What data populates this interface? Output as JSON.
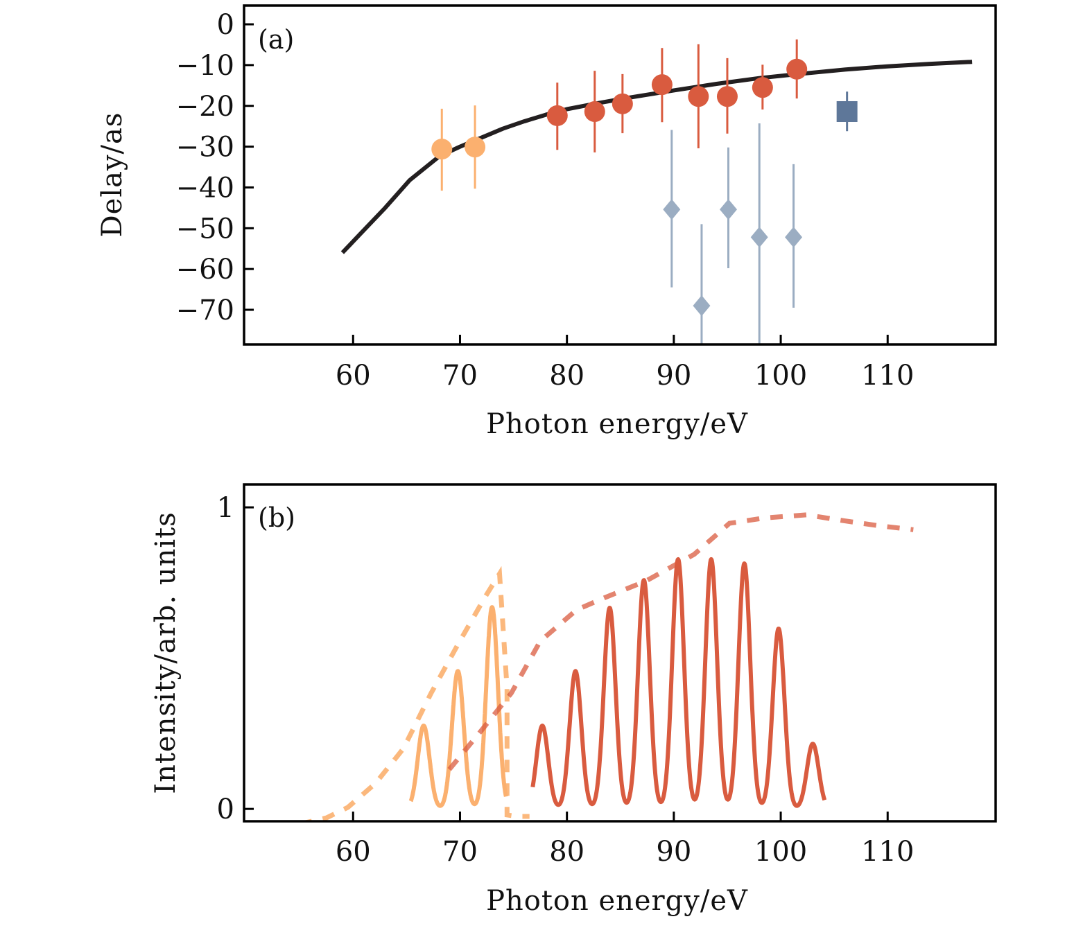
{
  "chart_data": [
    {
      "panel": "(a)",
      "type": "scatter",
      "xlabel": "Photon energy/eV",
      "ylabel": "Delay/as",
      "xlim": [
        49.8,
        120.1
      ],
      "ylim": [
        -78.5,
        4.6
      ],
      "xticks": [
        60,
        70,
        80,
        90,
        100,
        110
      ],
      "yticks": [
        0,
        -10,
        -20,
        -30,
        -40,
        -50,
        -60,
        -70
      ],
      "ytick_labels": [
        "0",
        "−10",
        "−20",
        "−30",
        "−40",
        "−50",
        "−60",
        "−70"
      ],
      "grid": false,
      "series": [
        {
          "name": "theory-curve",
          "kind": "line",
          "color": "#231f20",
          "x": [
            59.0,
            61.0,
            63.0,
            65.3,
            68.1,
            70.0,
            72.0,
            74.0,
            76.0,
            78.0,
            80.0,
            83.0,
            86.0,
            90.0,
            94.0,
            98.0,
            102.0,
            106.0,
            110.0,
            114.0,
            117.9
          ],
          "y": [
            -56.0,
            -50.5,
            -45.0,
            -38.2,
            -32.3,
            -30.0,
            -27.8,
            -25.6,
            -23.8,
            -22.2,
            -20.8,
            -19.3,
            -17.9,
            -16.2,
            -14.6,
            -13.2,
            -12.1,
            -11.1,
            -10.3,
            -9.7,
            -9.2
          ]
        },
        {
          "name": "orange-circles",
          "kind": "circle",
          "color": "#fbb06f",
          "x": [
            68.3,
            71.4
          ],
          "y": [
            -30.6,
            -30.1
          ],
          "err_low": [
            -40.8,
            -40.3
          ],
          "err_high": [
            -20.7,
            -19.9
          ]
        },
        {
          "name": "red-circles",
          "kind": "circle",
          "color": "#d95b3f",
          "x": [
            79.1,
            82.6,
            85.2,
            88.9,
            92.3,
            95.0,
            98.3,
            101.5
          ],
          "y": [
            -22.4,
            -21.4,
            -19.5,
            -14.8,
            -17.7,
            -17.7,
            -15.5,
            -11.0
          ],
          "err_low": [
            -30.8,
            -31.4,
            -26.7,
            -24.0,
            -30.4,
            -26.8,
            -20.9,
            -18.2
          ],
          "err_high": [
            -14.3,
            -11.4,
            -12.2,
            -5.8,
            -4.9,
            -8.3,
            -9.9,
            -3.7
          ]
        },
        {
          "name": "grey-diamonds",
          "kind": "diamond",
          "color": "#9badc2",
          "x": [
            89.8,
            92.6,
            95.1,
            98.0,
            101.2
          ],
          "y": [
            -45.4,
            -69.0,
            -45.4,
            -52.2,
            -52.2
          ],
          "err_low": [
            -64.5,
            -78.5,
            -59.8,
            -78.5,
            -69.5
          ],
          "err_high": [
            -25.9,
            -49.0,
            -30.2,
            -24.3,
            -34.3
          ]
        },
        {
          "name": "blue-square",
          "kind": "square",
          "color": "#5e7799",
          "x": [
            106.2
          ],
          "y": [
            -21.4
          ],
          "err_low": [
            -26.2
          ],
          "err_high": [
            -16.5
          ]
        }
      ]
    },
    {
      "panel": "(b)",
      "type": "line",
      "xlabel": "Photon energy/eV",
      "ylabel": "Intensity/arb. units",
      "xlim": [
        49.8,
        120.1
      ],
      "ylim": [
        -0.041,
        1.076
      ],
      "xticks": [
        60,
        70,
        80,
        90,
        100,
        110
      ],
      "yticks": [
        0,
        1
      ],
      "ytick_labels": [
        "0",
        "1"
      ],
      "grid": false,
      "series": [
        {
          "name": "orange-harmonics",
          "kind": "peaks",
          "color": "#fbb06f",
          "x_range": [
            65.4,
            74.3
          ],
          "peak_x": [
            66.6,
            69.8,
            73.0
          ],
          "peak_y": [
            0.276,
            0.457,
            0.669
          ],
          "width": 0.55
        },
        {
          "name": "red-harmonics",
          "kind": "peaks",
          "color": "#d95b3f",
          "x_range": [
            76.8,
            104.1
          ],
          "peak_x": [
            77.7,
            80.8,
            84.0,
            87.2,
            90.4,
            93.5,
            96.6,
            99.8,
            103.0
          ],
          "peak_y": [
            0.276,
            0.457,
            0.667,
            0.759,
            0.828,
            0.828,
            0.814,
            0.598,
            0.216
          ],
          "width": 0.55
        },
        {
          "name": "orange-envelope",
          "kind": "dashed",
          "color": "#fbb06f",
          "x": [
            55.0,
            57.5,
            59.5,
            62.1,
            64.7,
            67.3,
            69.8,
            72.4,
            73.7,
            74.4,
            74.4,
            75.3,
            76.5
          ],
          "y": [
            -0.05,
            -0.03,
            0.005,
            0.085,
            0.2,
            0.384,
            0.545,
            0.706,
            0.78,
            0.4,
            -0.02,
            -0.025,
            -0.025
          ]
        },
        {
          "name": "red-envelope",
          "kind": "dashed",
          "color": "#d95b3f",
          "x": [
            69.0,
            72.0,
            74.8,
            77.5,
            80.9,
            83.5,
            87.4,
            91.9,
            95.2,
            98.5,
            102.4,
            106.0,
            109.0,
            112.4
          ],
          "y": [
            0.131,
            0.26,
            0.384,
            0.556,
            0.66,
            0.7,
            0.756,
            0.844,
            0.947,
            0.965,
            0.975,
            0.955,
            0.94,
            0.926
          ]
        }
      ]
    }
  ]
}
